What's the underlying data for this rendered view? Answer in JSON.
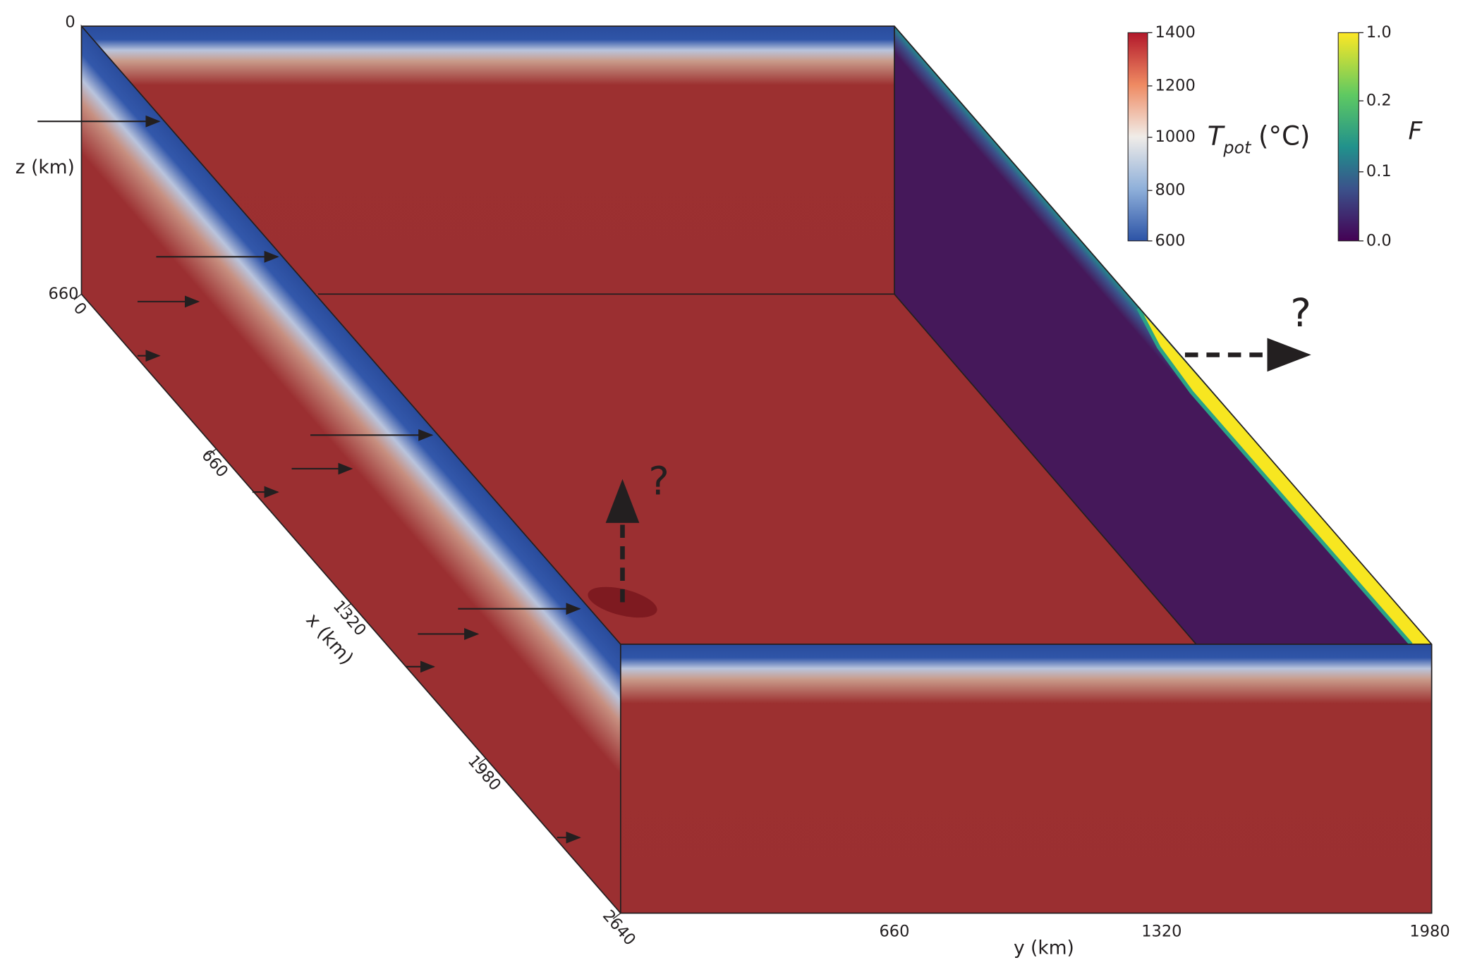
{
  "z_axis": {
    "label": "z (km)",
    "ticks": [
      "0",
      "660"
    ]
  },
  "x_axis": {
    "label": "x (km)",
    "ticks": [
      "0",
      "660",
      "1320",
      "1980",
      "2640"
    ]
  },
  "y_axis": {
    "label": "y (km)",
    "ticks": [
      "660",
      "1320",
      "1980"
    ]
  },
  "colorbar_temperature": {
    "symbol": "T",
    "subscript": "pot",
    "unit": "(°C)",
    "ticks": [
      "1400",
      "1200",
      "1000",
      "800",
      "600"
    ]
  },
  "colorbar_melt": {
    "label": "F",
    "ticks": [
      "1.0",
      "0.2",
      "0.1",
      "0.0"
    ]
  },
  "annotations": [
    "?",
    "?"
  ]
}
